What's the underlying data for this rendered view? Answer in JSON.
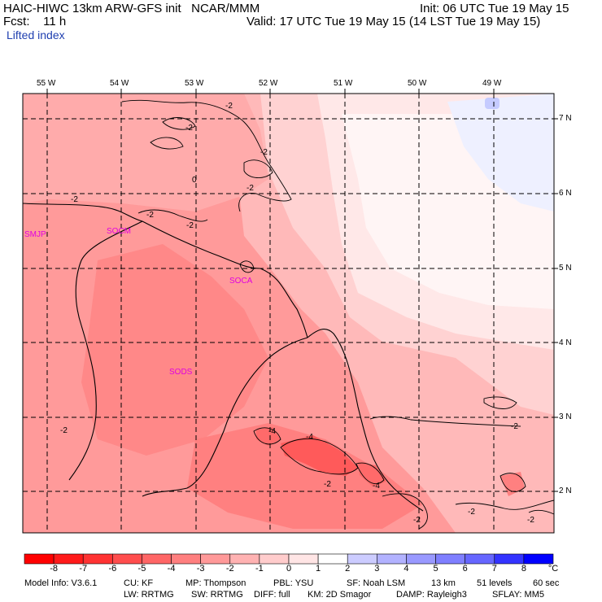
{
  "header": {
    "line1_left": "HAIC-HIWC 13km ARW-GFS init   NCAR/MMM",
    "line1_right": "Init: 06 UTC Tue 19 May 15",
    "line2_left": "Fcst:    11 h",
    "line2_right": "Valid: 17 UTC Tue 19 May 15 (14 LST Tue 19 May 15)",
    "field": "Lifted index"
  },
  "map": {
    "longitudes": [
      "55 W",
      "54 W",
      "53 W",
      "52 W",
      "51 W",
      "50 W",
      "49 W"
    ],
    "latitudes": [
      "7 N",
      "6 N",
      "5 N",
      "4 N",
      "3 N",
      "2 N"
    ],
    "sites": [
      "SMJP",
      "SOCM",
      "SOCA",
      "SODS"
    ],
    "contour_labels": [
      "-2",
      "-2",
      "-2",
      "0",
      "-2",
      "-2",
      "-2",
      "-2",
      "-2",
      "-2",
      "-4",
      "-4",
      "-4",
      "-2",
      "-2",
      "-2",
      "-2"
    ]
  },
  "colorbar": {
    "labels": [
      "-8",
      "-7",
      "-6",
      "-5",
      "-4",
      "-3",
      "-2",
      "-1",
      "0",
      "1",
      "2",
      "3",
      "4",
      "5",
      "6",
      "7",
      "8"
    ],
    "unit": "°C",
    "colors": [
      "#ff1a1a",
      "#ff3333",
      "#ff4d4d",
      "#ff6666",
      "#ff7f7f",
      "#ff9999",
      "#ffb2b2",
      "#ffcccc",
      "#ffe5e5",
      "#ffffff",
      "#ccccff",
      "#b2b2ff",
      "#9999ff",
      "#7f7fff",
      "#6666ff",
      "#3333ff",
      "#0000ff"
    ]
  },
  "footer": {
    "line1": [
      "Model Info: V3.6.1",
      "CU: KF",
      "MP: Thompson",
      "PBL: YSU",
      "SF: Noah LSM",
      "13 km",
      "51 levels",
      "60 sec"
    ],
    "line2": [
      "LW: RRTMG",
      "SW: RRTMG",
      "DIFF: full",
      "KM: 2D Smagor",
      "DAMP: Rayleigh3",
      "SFLAY: MM5"
    ]
  }
}
